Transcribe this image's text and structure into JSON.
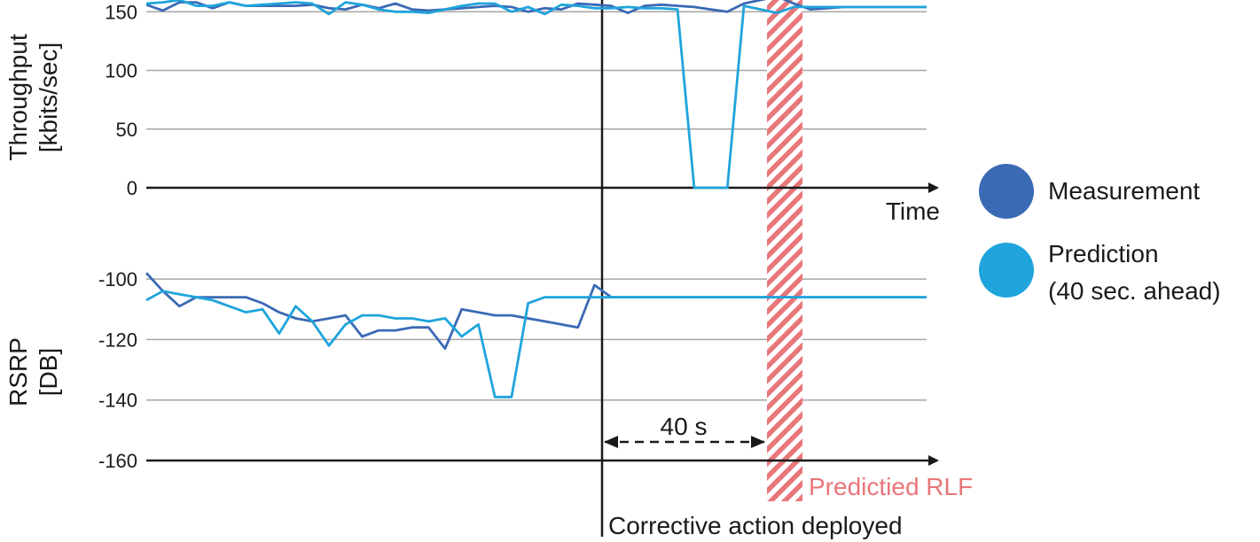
{
  "chart_data": [
    {
      "type": "line",
      "ylabel_line1": "Throughput",
      "ylabel_line2": "[kbits/sec]",
      "xlabel": "Time",
      "ylim": [
        0,
        160
      ],
      "yticks": [
        0,
        50,
        100,
        150
      ],
      "grid": true,
      "x": [
        0,
        1,
        2,
        3,
        4,
        5,
        6,
        7,
        8,
        9,
        10,
        11,
        12,
        13,
        14,
        15,
        16,
        17,
        18,
        19,
        20,
        21,
        22,
        23,
        24,
        25,
        26,
        27,
        28,
        29,
        30,
        31,
        32,
        33,
        34,
        35,
        36,
        37,
        38,
        39,
        40,
        41,
        42,
        43,
        44,
        45,
        46,
        47
      ],
      "series": [
        {
          "name": "Measurement",
          "values": [
            156,
            151,
            158,
            158,
            153,
            158,
            155,
            155,
            155,
            155,
            156,
            153,
            152,
            156,
            153,
            157,
            152,
            151,
            152,
            153,
            154,
            155,
            154,
            150,
            153,
            152,
            157,
            156,
            155,
            149,
            155,
            156,
            155,
            154,
            152,
            150,
            157,
            160,
            163,
            157,
            152,
            153,
            154,
            154,
            154,
            154,
            154,
            154
          ]
        },
        {
          "name": "Prediction",
          "values": [
            157,
            158,
            160,
            155,
            155,
            158,
            155,
            156,
            157,
            158,
            157,
            148,
            158,
            156,
            152,
            150,
            150,
            149,
            152,
            155,
            157,
            157,
            150,
            154,
            148,
            156,
            155,
            153,
            153,
            154,
            153,
            153,
            152,
            0,
            0,
            0,
            155,
            152,
            149,
            154,
            154,
            154,
            154,
            154,
            154,
            154,
            154,
            154
          ]
        }
      ]
    },
    {
      "type": "line",
      "ylabel_line1": "RSRP",
      "ylabel_line2": "[DB]",
      "ylim": [
        -160,
        -95
      ],
      "yticks": [
        -100,
        -120,
        -140,
        -160
      ],
      "grid": true,
      "x": [
        0,
        1,
        2,
        3,
        4,
        5,
        6,
        7,
        8,
        9,
        10,
        11,
        12,
        13,
        14,
        15,
        16,
        17,
        18,
        19,
        20,
        21,
        22,
        23,
        24,
        25,
        26,
        27,
        28,
        29,
        30,
        31,
        32,
        33,
        34,
        35,
        36,
        37,
        38,
        39,
        40,
        41,
        42,
        43,
        44,
        45,
        46,
        47
      ],
      "series": [
        {
          "name": "Measurement",
          "values": [
            -98,
            -104,
            -109,
            -106,
            -106,
            -106,
            -106,
            -108,
            -111,
            -113,
            -114,
            -113,
            -112,
            -119,
            -117,
            -117,
            -116,
            -116,
            -123,
            -110,
            -111,
            -112,
            -112,
            -113,
            -114,
            -115,
            -116,
            -102,
            -106,
            -106,
            -106,
            -106,
            -106,
            -106,
            -106,
            -106,
            -106,
            -106,
            -106,
            -106,
            -106,
            -106,
            -106,
            -106,
            -106,
            -106,
            -106,
            -106
          ]
        },
        {
          "name": "Prediction",
          "values": [
            -107,
            -104,
            -105,
            -106,
            -107,
            -109,
            -111,
            -110,
            -118,
            -109,
            -114,
            -122,
            -115,
            -112,
            -112,
            -113,
            -113,
            -114,
            -113,
            -119,
            -115,
            -139,
            -139,
            -108,
            -106,
            -106,
            -106,
            -106,
            -106,
            -106,
            -106,
            -106,
            -106,
            -106,
            -106,
            -106,
            -106,
            -106,
            -106,
            -106,
            -106,
            -106,
            -106,
            -106,
            -106,
            -106,
            -106,
            -106
          ]
        }
      ]
    }
  ],
  "legend": {
    "placement": "right",
    "items": [
      {
        "label": "Measurement",
        "color": "#3b6ab5"
      },
      {
        "label_line1": "Prediction",
        "label_line2": "(40 sec. ahead)",
        "color": "#1fa4dc"
      }
    ]
  },
  "annotations": {
    "corrective_action": "Corrective action deployed",
    "interval": "40 s",
    "rlf": "Predictied RLF"
  },
  "colors": {
    "measurement": "#3b6ab5",
    "prediction": "#1fa4dc",
    "rlf_band": "#e8767a",
    "grid": "#a6a6a6",
    "axis": "#1a1a1a"
  }
}
